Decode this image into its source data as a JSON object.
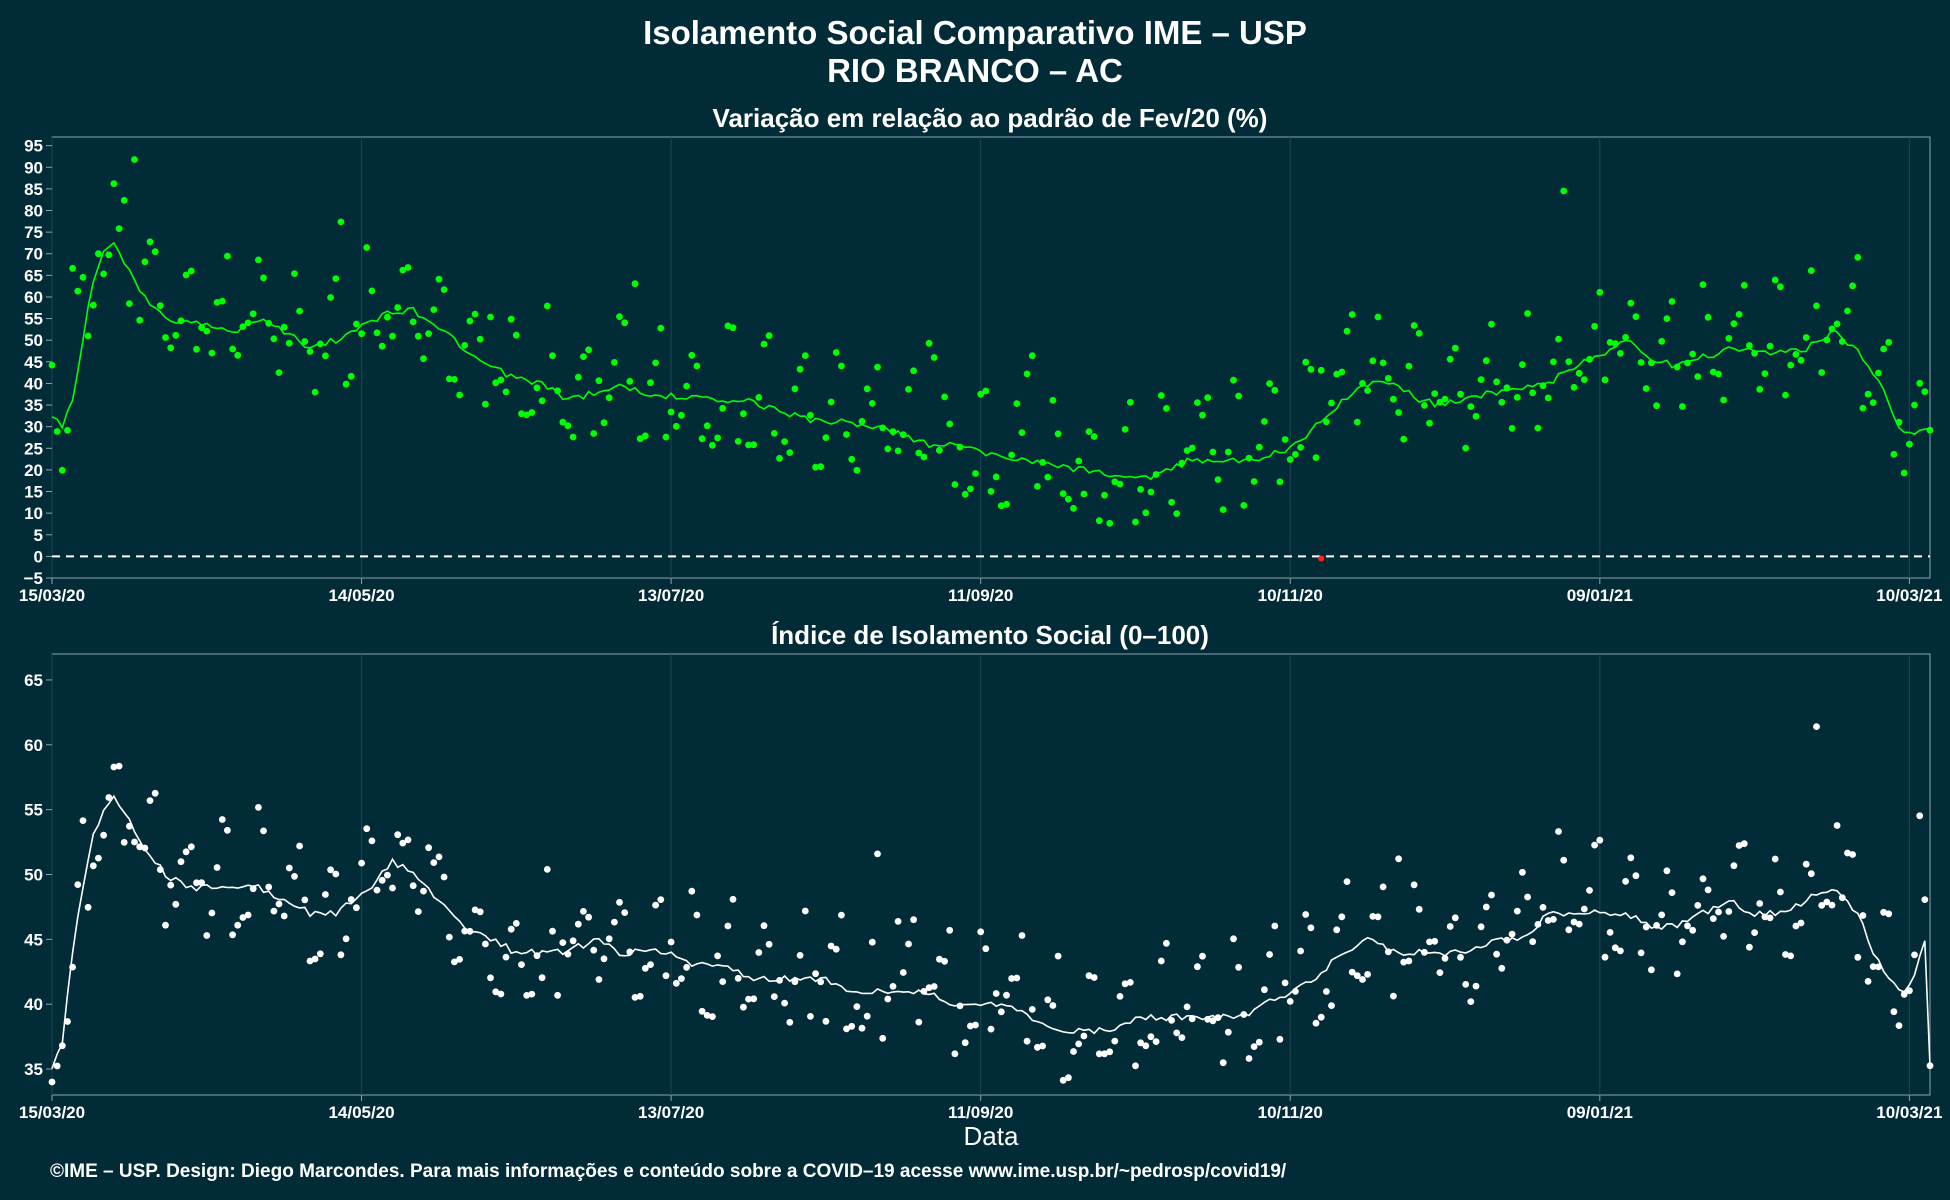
{
  "header": {
    "title_line1": "Isolamento Social Comparativo IME – USP",
    "title_line2": "RIO BRANCO – AC"
  },
  "footer": {
    "credit": "©IME – USP. Design: Diego Marcondes. Para mais informações e conteúdo sobre a COVID–19 acesse www.ime.usp.br/~pedrosp/covid19/"
  },
  "colors": {
    "background": "#022b38",
    "variation_points": "#00ff00",
    "variation_line": "#00ff00",
    "index_points": "#ffffff",
    "index_line": "#ffffff",
    "negative_point": "#ff2020",
    "grid": "#1f4550",
    "axis": "#8fa4aa"
  },
  "chart_data": [
    {
      "type": "scatter",
      "title": "Variação em relação ao padrão de Fev/20 (%)",
      "xlabel": "",
      "ylabel": "",
      "x_start": "15/03/20",
      "n_days": 365,
      "x_tick_labels": [
        "15/03/20",
        "14/05/20",
        "13/07/20",
        "11/09/20",
        "10/11/20",
        "09/01/21",
        "10/03/21"
      ],
      "x_tick_day_offsets": [
        0,
        60,
        120,
        180,
        240,
        300,
        360
      ],
      "ylim": [
        -5,
        97
      ],
      "y_ticks": [
        -5,
        0,
        5,
        10,
        15,
        20,
        25,
        30,
        35,
        40,
        45,
        50,
        55,
        60,
        65,
        70,
        75,
        80,
        85,
        90,
        95
      ],
      "reference_line": 0,
      "grid": "vertical",
      "anchors": [
        [
          0,
          33
        ],
        [
          2,
          30
        ],
        [
          4,
          36
        ],
        [
          6,
          50
        ],
        [
          8,
          64
        ],
        [
          10,
          71
        ],
        [
          12,
          72
        ],
        [
          14,
          68
        ],
        [
          17,
          62
        ],
        [
          20,
          57
        ],
        [
          25,
          54
        ],
        [
          30,
          54
        ],
        [
          35,
          52
        ],
        [
          40,
          55
        ],
        [
          45,
          52
        ],
        [
          50,
          48
        ],
        [
          55,
          50
        ],
        [
          60,
          53
        ],
        [
          65,
          56
        ],
        [
          70,
          57
        ],
        [
          75,
          53
        ],
        [
          80,
          48
        ],
        [
          85,
          44
        ],
        [
          90,
          41
        ],
        [
          95,
          40
        ],
        [
          100,
          36
        ],
        [
          105,
          38
        ],
        [
          110,
          39
        ],
        [
          115,
          38
        ],
        [
          120,
          37
        ],
        [
          125,
          37
        ],
        [
          130,
          36
        ],
        [
          135,
          36
        ],
        [
          140,
          34
        ],
        [
          145,
          32
        ],
        [
          150,
          31
        ],
        [
          155,
          31
        ],
        [
          160,
          30
        ],
        [
          165,
          28
        ],
        [
          170,
          26
        ],
        [
          175,
          26
        ],
        [
          180,
          24
        ],
        [
          185,
          23
        ],
        [
          190,
          22
        ],
        [
          195,
          21
        ],
        [
          200,
          20
        ],
        [
          205,
          19
        ],
        [
          210,
          18
        ],
        [
          215,
          19
        ],
        [
          220,
          22
        ],
        [
          225,
          22
        ],
        [
          230,
          22
        ],
        [
          235,
          23
        ],
        [
          240,
          25
        ],
        [
          245,
          30
        ],
        [
          250,
          36
        ],
        [
          255,
          40
        ],
        [
          260,
          40
        ],
        [
          265,
          36
        ],
        [
          270,
          35
        ],
        [
          275,
          37
        ],
        [
          280,
          38
        ],
        [
          285,
          39
        ],
        [
          290,
          40
        ],
        [
          295,
          44
        ],
        [
          300,
          46
        ],
        [
          305,
          50
        ],
        [
          310,
          46
        ],
        [
          315,
          44
        ],
        [
          320,
          46
        ],
        [
          325,
          48
        ],
        [
          330,
          48
        ],
        [
          335,
          47
        ],
        [
          340,
          48
        ],
        [
          345,
          52
        ],
        [
          350,
          48
        ],
        [
          355,
          38
        ],
        [
          358,
          30
        ],
        [
          361,
          28
        ],
        [
          364,
          30
        ]
      ],
      "noise_amplitude": 13,
      "negative_point": {
        "day": 246,
        "value": -0.5
      }
    },
    {
      "type": "scatter",
      "title": "Índice de Isolamento Social (0–100)",
      "xlabel": "Data",
      "ylabel": "",
      "x_start": "15/03/20",
      "n_days": 365,
      "x_tick_labels": [
        "15/03/20",
        "14/05/20",
        "13/07/20",
        "11/09/20",
        "10/11/20",
        "09/01/21",
        "10/03/21"
      ],
      "x_tick_day_offsets": [
        0,
        60,
        120,
        180,
        240,
        300,
        360
      ],
      "ylim": [
        33,
        67
      ],
      "y_ticks": [
        35,
        40,
        45,
        50,
        55,
        60,
        65
      ],
      "grid": "vertical",
      "anchors": [
        [
          0,
          35
        ],
        [
          2,
          37
        ],
        [
          4,
          44
        ],
        [
          6,
          49
        ],
        [
          8,
          53
        ],
        [
          10,
          55
        ],
        [
          12,
          56
        ],
        [
          15,
          54
        ],
        [
          18,
          52
        ],
        [
          22,
          50
        ],
        [
          26,
          49
        ],
        [
          30,
          49
        ],
        [
          35,
          49
        ],
        [
          40,
          49
        ],
        [
          45,
          48
        ],
        [
          50,
          47
        ],
        [
          55,
          47
        ],
        [
          58,
          48
        ],
        [
          62,
          49
        ],
        [
          66,
          51
        ],
        [
          70,
          50
        ],
        [
          75,
          48
        ],
        [
          80,
          46
        ],
        [
          85,
          45
        ],
        [
          90,
          44
        ],
        [
          95,
          44
        ],
        [
          100,
          44
        ],
        [
          105,
          45
        ],
        [
          110,
          44
        ],
        [
          115,
          44
        ],
        [
          120,
          44
        ],
        [
          125,
          43
        ],
        [
          130,
          43
        ],
        [
          135,
          42
        ],
        [
          140,
          42
        ],
        [
          145,
          42
        ],
        [
          150,
          42
        ],
        [
          155,
          41
        ],
        [
          160,
          41
        ],
        [
          165,
          41
        ],
        [
          170,
          41
        ],
        [
          175,
          40
        ],
        [
          180,
          40
        ],
        [
          185,
          40
        ],
        [
          190,
          39
        ],
        [
          195,
          38
        ],
        [
          200,
          38
        ],
        [
          205,
          38
        ],
        [
          210,
          39
        ],
        [
          215,
          39
        ],
        [
          220,
          39
        ],
        [
          225,
          39
        ],
        [
          230,
          39
        ],
        [
          235,
          40
        ],
        [
          240,
          41
        ],
        [
          245,
          42
        ],
        [
          250,
          44
        ],
        [
          255,
          45
        ],
        [
          260,
          44
        ],
        [
          265,
          44
        ],
        [
          270,
          44
        ],
        [
          275,
          44
        ],
        [
          280,
          45
        ],
        [
          285,
          45
        ],
        [
          290,
          47
        ],
        [
          295,
          47
        ],
        [
          300,
          47
        ],
        [
          305,
          47
        ],
        [
          310,
          46
        ],
        [
          315,
          46
        ],
        [
          320,
          47
        ],
        [
          325,
          48
        ],
        [
          330,
          47
        ],
        [
          335,
          47
        ],
        [
          340,
          48
        ],
        [
          345,
          49
        ],
        [
          350,
          47
        ],
        [
          353,
          44
        ],
        [
          356,
          42
        ],
        [
          359,
          41
        ],
        [
          361,
          42
        ],
        [
          363,
          45
        ],
        [
          364,
          35
        ]
      ],
      "noise_amplitude": 4.5
    }
  ]
}
